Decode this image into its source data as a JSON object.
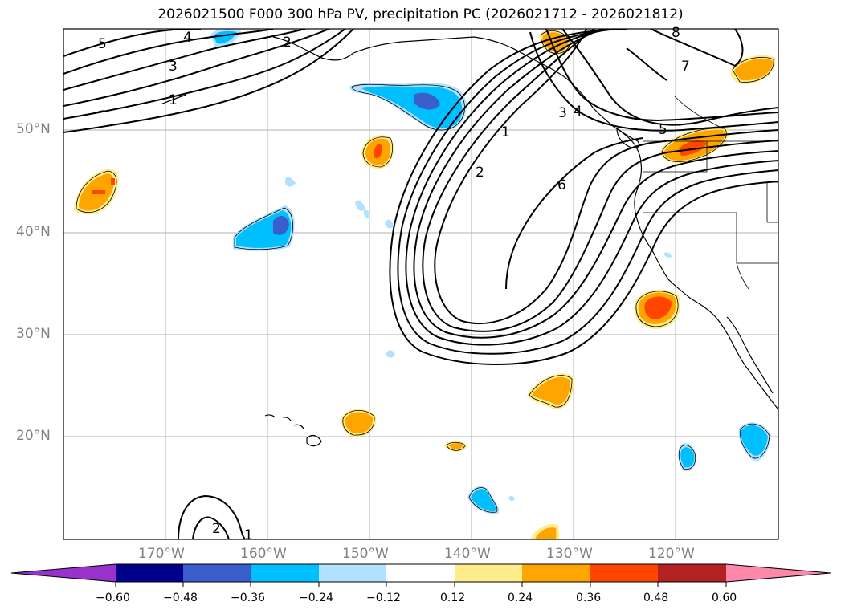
{
  "title": "2026021500 F000 300 hPa PV, precipitation PC (2026021712 - 2026021812)",
  "map": {
    "lat_labels": [
      "50°N",
      "40°N",
      "30°N",
      "20°N"
    ],
    "lon_labels": [
      "170°W",
      "160°W",
      "150°W",
      "140°W",
      "130°W",
      "120°W"
    ],
    "pv_contour_labels": [
      "5",
      "4",
      "3",
      "2",
      "1",
      "1",
      "2",
      "3",
      "4",
      "5",
      "6",
      "7",
      "8",
      "2",
      "1"
    ]
  },
  "colorbar": {
    "tick_labels": [
      "−0.60",
      "−0.48",
      "−0.36",
      "−0.24",
      "−0.12",
      "0.12",
      "0.24",
      "0.36",
      "0.48",
      "0.60"
    ],
    "colors": [
      "#9932cc",
      "#00008b",
      "#3a5fcd",
      "#00bfff",
      "#b0e2ff",
      "#ffffff",
      "#ffec8b",
      "#ffa500",
      "#ff4500",
      "#b22222",
      "#ff88aa"
    ]
  }
}
